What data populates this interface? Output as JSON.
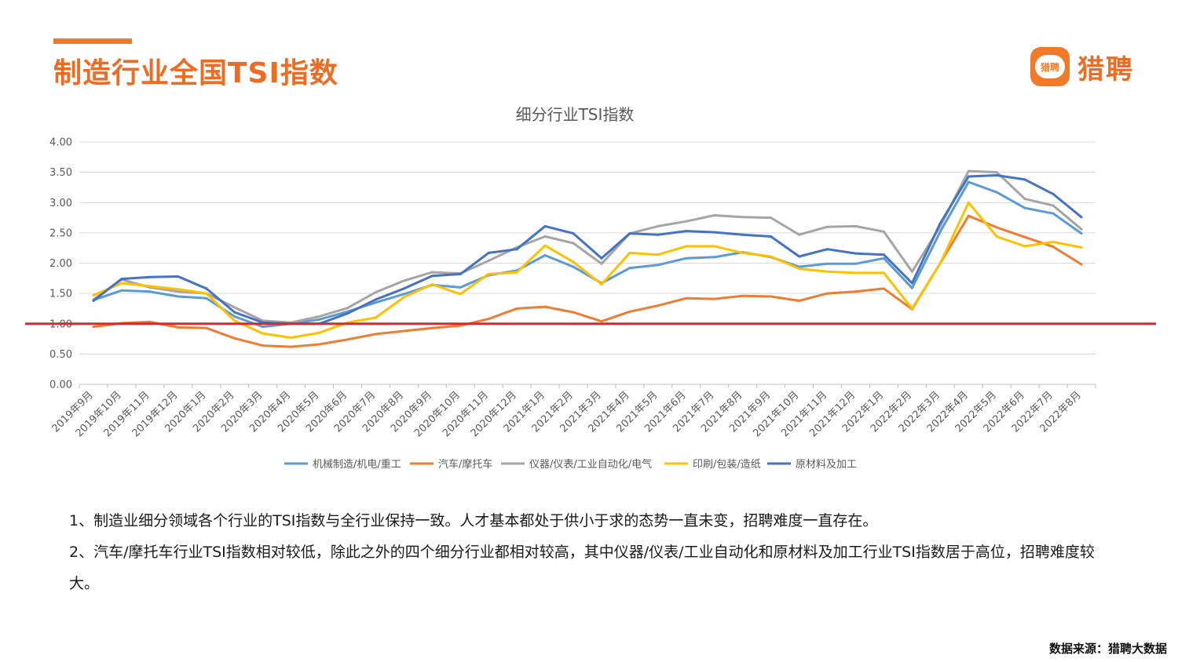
{
  "header": {
    "title": "制造行业全国TSI指数",
    "logo_badge": "猎聘",
    "logo_text": "猎聘"
  },
  "chart_data": {
    "type": "line",
    "title": "细分行业TSI指数",
    "xlabel": "",
    "ylabel": "",
    "ylim": [
      0,
      4
    ],
    "yticks": [
      "0.00",
      "0.50",
      "1.00",
      "1.50",
      "2.00",
      "2.50",
      "3.00",
      "3.50",
      "4.00"
    ],
    "grid": true,
    "legend_position": "bottom",
    "categories": [
      "2019年9月",
      "2019年10月",
      "2019年11月",
      "2019年12月",
      "2020年1月",
      "2020年2月",
      "2020年3月",
      "2020年4月",
      "2020年5月",
      "2020年6月",
      "2020年7月",
      "2020年8月",
      "2020年9月",
      "2020年10月",
      "2020年11月",
      "2020年12月",
      "2021年1月",
      "2021年2月",
      "2021年3月",
      "2021年4月",
      "2021年5月",
      "2021年6月",
      "2021年7月",
      "2021年8月",
      "2021年9月",
      "2021年10月",
      "2021年11月",
      "2021年12月",
      "2022年1月",
      "2022年2月",
      "2022年3月",
      "2022年4月",
      "2022年5月",
      "2022年6月",
      "2022年7月",
      "2022年8月"
    ],
    "reference_line": {
      "value": 1.0,
      "color": "#e8202a"
    },
    "series": [
      {
        "name": "机械制造/机电/重工",
        "color": "#5b9bd5",
        "values": [
          1.39,
          1.55,
          1.53,
          1.45,
          1.42,
          1.12,
          0.95,
          1.0,
          1.07,
          1.2,
          1.35,
          1.49,
          1.64,
          1.6,
          1.8,
          1.88,
          2.13,
          1.94,
          1.67,
          1.92,
          1.97,
          2.08,
          2.1,
          2.18,
          2.1,
          1.94,
          1.99,
          1.99,
          2.08,
          1.59,
          2.52,
          3.34,
          3.17,
          2.91,
          2.82,
          2.49
        ]
      },
      {
        "name": "汽车/摩托车",
        "color": "#ed7d31",
        "values": [
          0.95,
          1.01,
          1.03,
          0.94,
          0.93,
          0.76,
          0.64,
          0.62,
          0.66,
          0.74,
          0.83,
          0.88,
          0.93,
          0.97,
          1.08,
          1.25,
          1.28,
          1.19,
          1.04,
          1.2,
          1.3,
          1.42,
          1.41,
          1.46,
          1.45,
          1.38,
          1.5,
          1.53,
          1.58,
          1.24,
          2.0,
          2.78,
          2.59,
          2.43,
          2.27,
          1.98
        ]
      },
      {
        "name": "仪器/仪表/工业自动化/电气",
        "color": "#a5a5a5",
        "values": [
          1.4,
          1.73,
          1.6,
          1.53,
          1.5,
          1.27,
          1.05,
          1.02,
          1.12,
          1.26,
          1.52,
          1.71,
          1.85,
          1.83,
          2.04,
          2.26,
          2.44,
          2.33,
          1.99,
          2.49,
          2.61,
          2.69,
          2.79,
          2.76,
          2.75,
          2.47,
          2.6,
          2.61,
          2.52,
          1.86,
          2.61,
          3.52,
          3.5,
          3.06,
          2.95,
          2.56
        ]
      },
      {
        "name": "印刷/包装/造纸",
        "color": "#ffc000",
        "values": [
          1.47,
          1.67,
          1.62,
          1.57,
          1.5,
          1.05,
          0.84,
          0.77,
          0.85,
          1.02,
          1.1,
          1.44,
          1.65,
          1.49,
          1.82,
          1.85,
          2.29,
          2.02,
          1.65,
          2.17,
          2.14,
          2.28,
          2.28,
          2.17,
          2.11,
          1.91,
          1.86,
          1.84,
          1.84,
          1.25,
          2.0,
          3.0,
          2.44,
          2.28,
          2.35,
          2.26
        ]
      },
      {
        "name": "原材料及加工",
        "color": "#4472c4",
        "values": [
          1.38,
          1.74,
          1.77,
          1.78,
          1.58,
          1.19,
          1.02,
          1.0,
          1.0,
          1.17,
          1.4,
          1.58,
          1.79,
          1.82,
          2.17,
          2.23,
          2.61,
          2.49,
          2.08,
          2.49,
          2.47,
          2.53,
          2.51,
          2.47,
          2.44,
          2.11,
          2.23,
          2.16,
          2.14,
          1.67,
          2.66,
          3.43,
          3.45,
          3.38,
          3.14,
          2.76
        ]
      }
    ]
  },
  "notes": {
    "line1": "1、制造业细分领域各个行业的TSI指数与全行业保持一致。人才基本都处于供小于求的态势一直未变，招聘难度一直存在。",
    "line2": "2、汽车/摩托车行业TSI指数相对较低，除此之外的四个细分行业都相对较高，其中仪器/仪表/工业自动化和原材料及加工行业TSI指数居于高位，招聘难度较大。"
  },
  "footer": {
    "source": "数据来源：猎聘大数据"
  }
}
